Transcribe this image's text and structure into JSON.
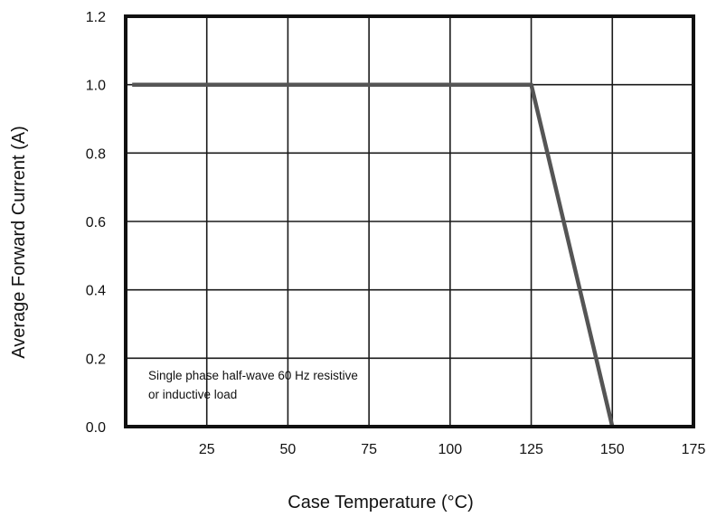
{
  "chart_data": {
    "type": "line",
    "xlabel": "Case Temperature (°C)",
    "ylabel": "Average Forward Current  (A)",
    "xlim": [
      0,
      175
    ],
    "ylim": [
      0,
      1.2
    ],
    "x_ticks": [
      "25",
      "50",
      "75",
      "100",
      "125",
      "150",
      "175"
    ],
    "y_ticks": [
      "0.0",
      "0.2",
      "0.4",
      "0.6",
      "0.8",
      "1.0",
      "1.2"
    ],
    "grid": true,
    "series": [
      {
        "x": [
          2,
          125,
          150
        ],
        "y": [
          1.0,
          1.0,
          0.0
        ]
      }
    ],
    "annotation_lines": [
      "Single phase half-wave 60 Hz resistive",
      "or inductive load"
    ],
    "colors": {
      "line": "#555555",
      "grid": "#1a1a1a"
    }
  }
}
